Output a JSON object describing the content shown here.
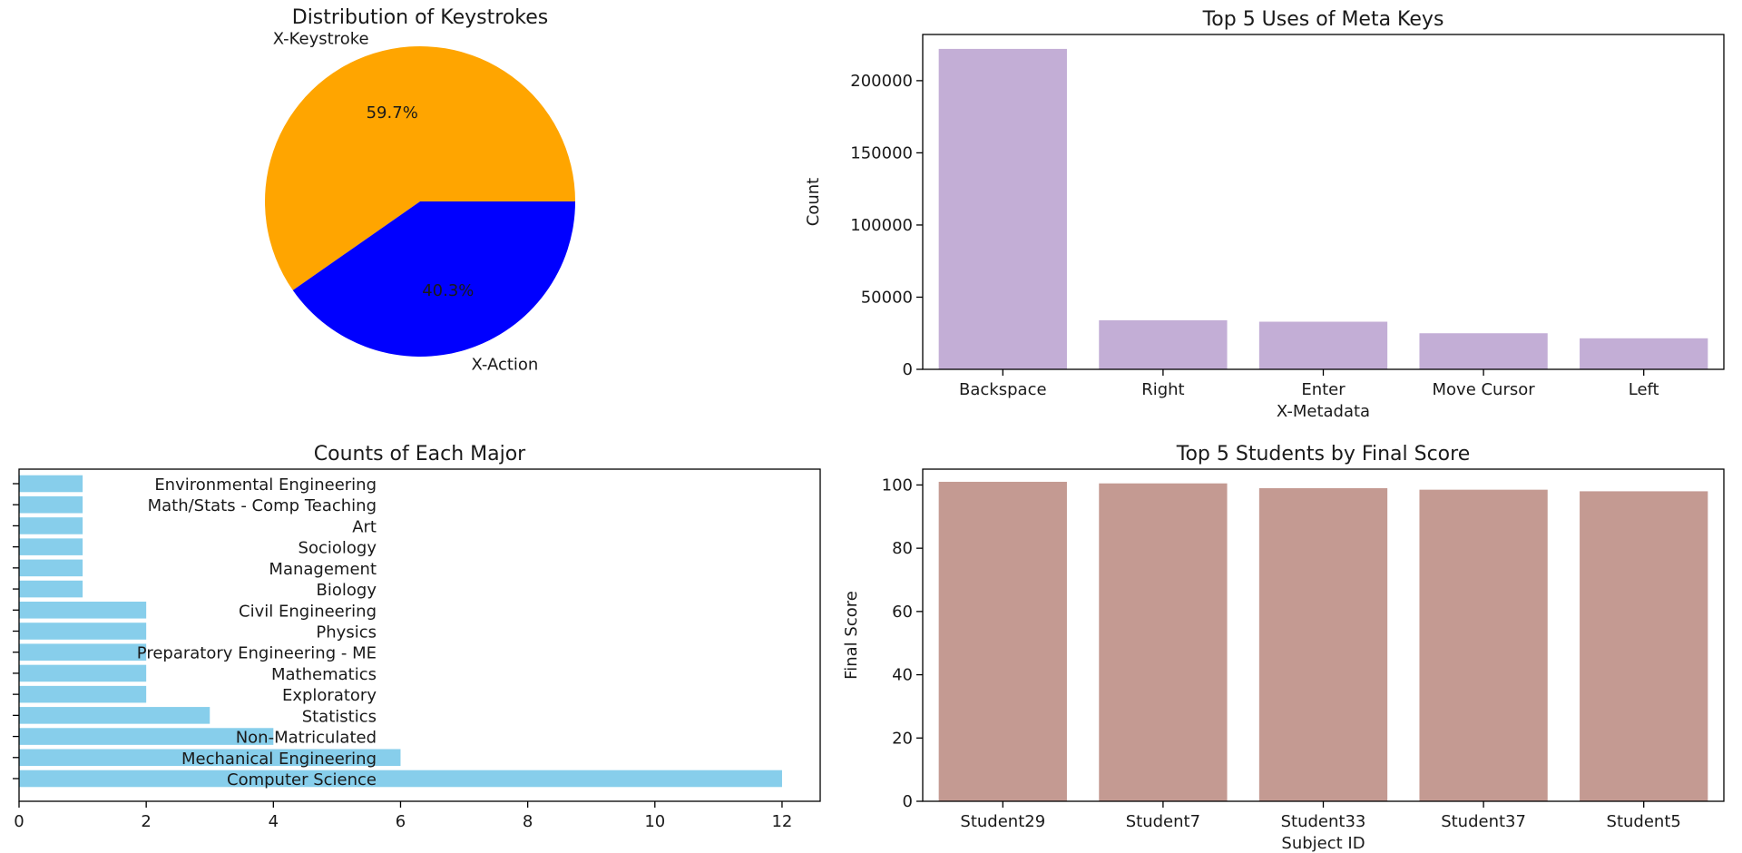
{
  "chart_data": [
    {
      "type": "pie",
      "title": "Distribution of Keystrokes",
      "labels": [
        "X-Keystroke",
        "X-Action"
      ],
      "values": [
        59.7,
        40.3
      ],
      "autopct": [
        "59.7%",
        "40.3%"
      ],
      "colors": [
        "#FFA500",
        "#0000FF"
      ]
    },
    {
      "type": "bar",
      "title": "Top 5 Uses of Meta Keys",
      "xlabel": "X-Metadata",
      "ylabel": "Count",
      "categories": [
        "Backspace",
        "Right",
        "Enter",
        "Move Cursor",
        "Left"
      ],
      "values": [
        222000,
        34000,
        33000,
        25000,
        21500
      ],
      "ylim": [
        0,
        232000
      ],
      "yticks": [
        0,
        50000,
        100000,
        150000,
        200000
      ],
      "color": "#C3AED6"
    },
    {
      "type": "barh",
      "title": "Counts of Each Major",
      "categories": [
        "Computer Science",
        "Mechanical Engineering",
        "Non-Matriculated",
        "Statistics",
        "Exploratory",
        "Mathematics",
        "Preparatory Engineering - ME",
        "Physics",
        "Civil Engineering",
        "Biology",
        "Management",
        "Sociology",
        "Art",
        "Math/Stats - Comp Teaching",
        "Environmental Engineering"
      ],
      "values": [
        12,
        6,
        4,
        3,
        2,
        2,
        2,
        2,
        2,
        1,
        1,
        1,
        1,
        1,
        1
      ],
      "xlim": [
        0,
        12.6
      ],
      "xticks": [
        0,
        2,
        4,
        6,
        8,
        10,
        12
      ],
      "color": "#87CEEB"
    },
    {
      "type": "bar",
      "title": "Top 5 Students by Final Score",
      "xlabel": "Subject ID",
      "ylabel": "Final Score",
      "categories": [
        "Student29",
        "Student7",
        "Student33",
        "Student37",
        "Student5"
      ],
      "values": [
        101,
        100.5,
        99,
        98.5,
        98
      ],
      "ylim": [
        0,
        105
      ],
      "yticks": [
        0,
        20,
        40,
        60,
        80,
        100
      ],
      "color": "#C49A92"
    }
  ]
}
